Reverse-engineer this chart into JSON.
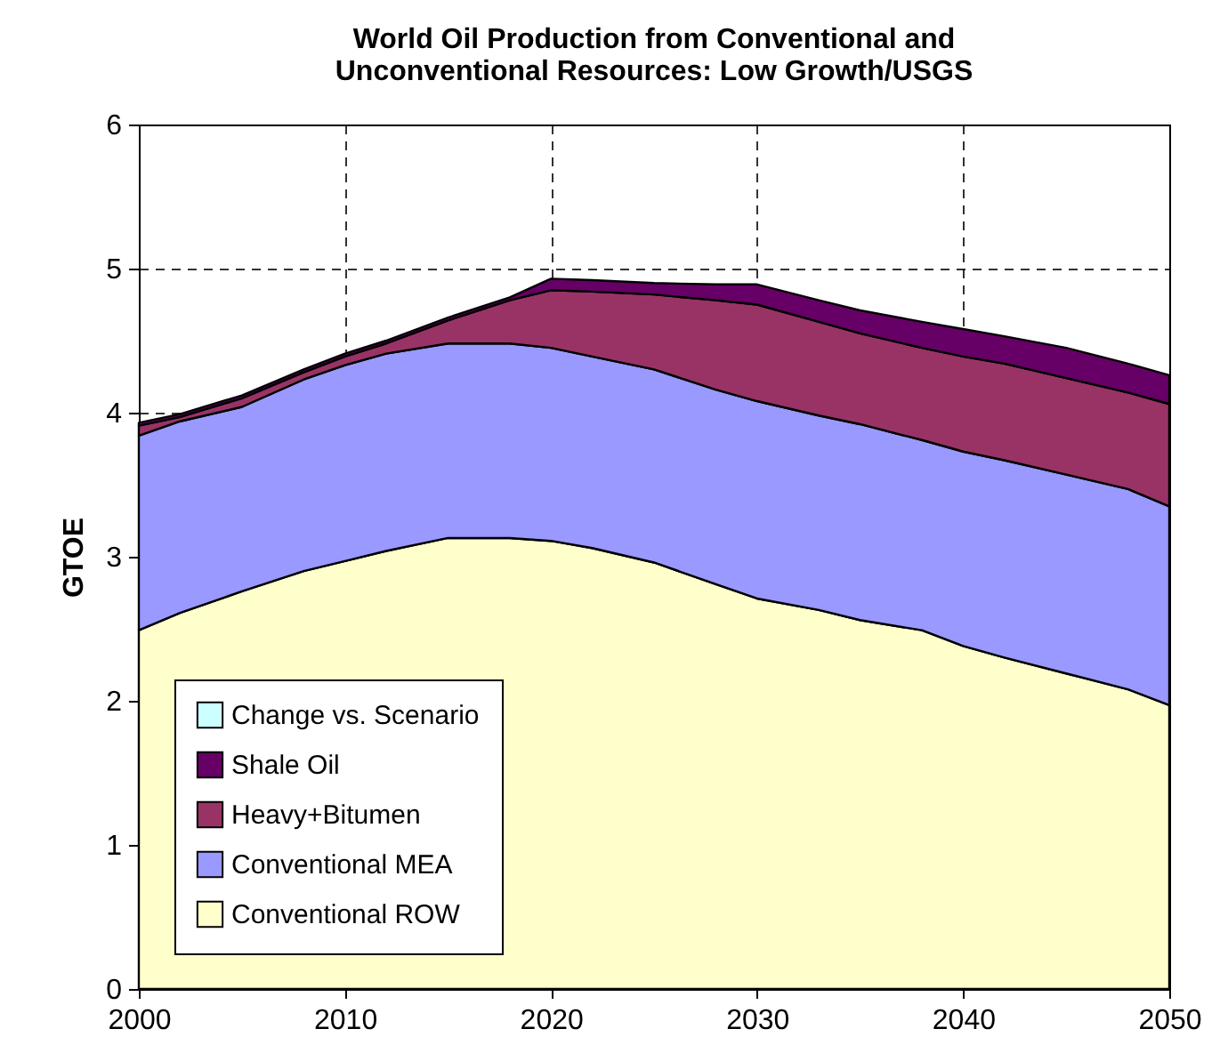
{
  "chart_data": {
    "type": "area",
    "stacked": true,
    "title": "World Oil Production from Conventional and Unconventional Resources: Low Growth/USGS",
    "ylabel": "GTOE",
    "x": [
      2000,
      2002,
      2005,
      2008,
      2010,
      2012,
      2015,
      2018,
      2020,
      2022,
      2025,
      2028,
      2030,
      2033,
      2035,
      2038,
      2040,
      2042,
      2045,
      2048,
      2050
    ],
    "xlim": [
      2000,
      2050
    ],
    "xticks": [
      2000,
      2010,
      2020,
      2030,
      2040,
      2050
    ],
    "ylim": [
      0,
      6
    ],
    "yticks": [
      0,
      1,
      2,
      3,
      4,
      5,
      6
    ],
    "grid": true,
    "legend": "bottom left",
    "series": [
      {
        "name": "Conventional ROW",
        "color": "#ffffcc",
        "values": [
          2.49,
          2.61,
          2.76,
          2.9,
          2.97,
          3.04,
          3.13,
          3.13,
          3.11,
          3.06,
          2.96,
          2.81,
          2.71,
          2.63,
          2.56,
          2.49,
          2.38,
          2.3,
          2.19,
          2.08,
          1.97
        ]
      },
      {
        "name": "Conventional MEA",
        "color": "#9999ff",
        "values": [
          1.35,
          1.33,
          1.28,
          1.33,
          1.36,
          1.37,
          1.35,
          1.35,
          1.34,
          1.33,
          1.34,
          1.35,
          1.37,
          1.35,
          1.36,
          1.32,
          1.35,
          1.37,
          1.38,
          1.39,
          1.38
        ]
      },
      {
        "name": "Heavy+Bitumen",
        "color": "#993366",
        "values": [
          0.07,
          0.03,
          0.06,
          0.05,
          0.06,
          0.07,
          0.16,
          0.3,
          0.4,
          0.45,
          0.52,
          0.62,
          0.67,
          0.65,
          0.63,
          0.64,
          0.66,
          0.67,
          0.67,
          0.67,
          0.71
        ]
      },
      {
        "name": "Shale Oil",
        "color": "#660066",
        "values": [
          0.02,
          0.02,
          0.02,
          0.02,
          0.02,
          0.02,
          0.02,
          0.02,
          0.08,
          0.08,
          0.08,
          0.11,
          0.14,
          0.15,
          0.16,
          0.18,
          0.19,
          0.19,
          0.21,
          0.2,
          0.2
        ]
      },
      {
        "name": "Change vs. Scenario",
        "color": "#ccffff",
        "values": [
          null,
          null,
          null,
          null,
          null,
          null,
          null,
          null,
          null,
          null,
          null,
          null,
          null,
          null,
          null,
          null,
          null,
          null,
          null,
          null,
          null
        ]
      }
    ]
  }
}
